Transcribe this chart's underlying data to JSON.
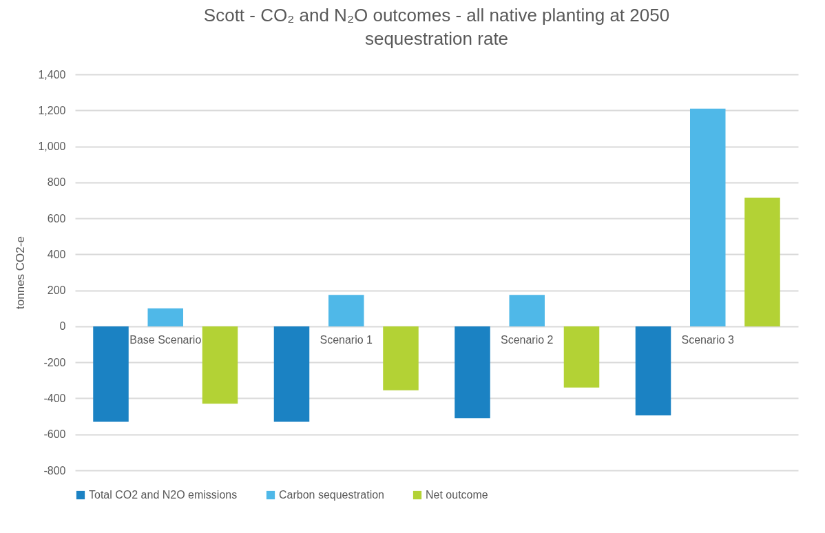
{
  "chart_data": {
    "type": "bar",
    "title": "Scott - CO₂ and N₂O outcomes - all native planting at 2050 sequestration rate",
    "ylabel": "tonnes CO2-e",
    "categories": [
      "Base Scenario",
      "Scenario 1",
      "Scenario 2",
      "Scenario 3"
    ],
    "series": [
      {
        "name": "Total CO2 and N2O emissions",
        "color": "#1b82c3",
        "values": [
          -530,
          -530,
          -510,
          -495
        ]
      },
      {
        "name": "Carbon sequestration",
        "color": "#4fb8e8",
        "values": [
          100,
          175,
          175,
          1210
        ]
      },
      {
        "name": "Net outcome",
        "color": "#b3d235",
        "values": [
          -430,
          -355,
          -340,
          715
        ]
      }
    ],
    "ylim": [
      -800,
      1400
    ],
    "yticks": [
      {
        "value": -800,
        "label": "-800"
      },
      {
        "value": -600,
        "label": "-600"
      },
      {
        "value": -400,
        "label": "-400"
      },
      {
        "value": -200,
        "label": "-200"
      },
      0,
      200,
      400,
      600,
      800,
      {
        "value": 1000,
        "label": "1,000"
      },
      {
        "value": 1200,
        "label": "1,200"
      },
      {
        "value": 1400,
        "label": "1,400"
      }
    ],
    "grid": "y",
    "legend": "bottom"
  }
}
